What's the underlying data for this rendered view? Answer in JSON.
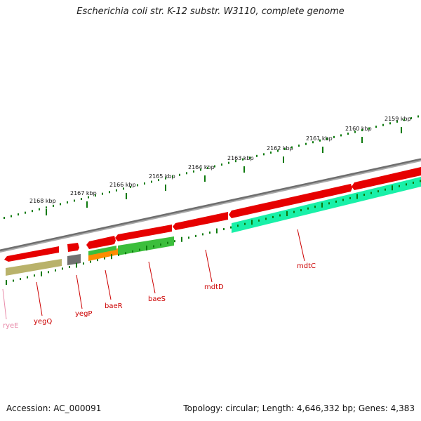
{
  "title": "Escherichia coli str. K-12 substr. W3110, complete genome",
  "footer": {
    "accession": "Accession: AC_000091",
    "summary": "Topology: circular; Length: 4,646,332 bp; Genes: 4,383"
  },
  "colors": {
    "backbone": "#8a8a8a",
    "ticks": "#0d7a0d",
    "label_red": "#cc0000",
    "label_pink": "#e88aa8",
    "cds_red": "#e60000",
    "cds_gray": "#707070",
    "cds_olive": "#b9b26b",
    "cds_green": "#3cbe3c",
    "cds_orange": "#ff8c00",
    "cds_teal": "#19f0a8"
  },
  "scale_ticks": [
    {
      "label": "2159 kbp"
    },
    {
      "label": "2160 kbp"
    },
    {
      "label": "2161 kbp"
    },
    {
      "label": "2162 kbp"
    },
    {
      "label": "2163 kbp"
    },
    {
      "label": "2164 kbp"
    },
    {
      "label": "2165 kbp"
    },
    {
      "label": "2166 kbp"
    },
    {
      "label": "2167 kbp"
    },
    {
      "label": "2168 kbp"
    }
  ],
  "genes": [
    {
      "name": "mdtC",
      "color_key": "label_red"
    },
    {
      "name": "mdtD",
      "color_key": "label_red"
    },
    {
      "name": "baeS",
      "color_key": "label_red"
    },
    {
      "name": "baeR",
      "color_key": "label_red"
    },
    {
      "name": "yegP",
      "color_key": "label_red"
    },
    {
      "name": "yegQ",
      "color_key": "label_red"
    },
    {
      "name": "ryeE",
      "color_key": "label_pink"
    }
  ]
}
